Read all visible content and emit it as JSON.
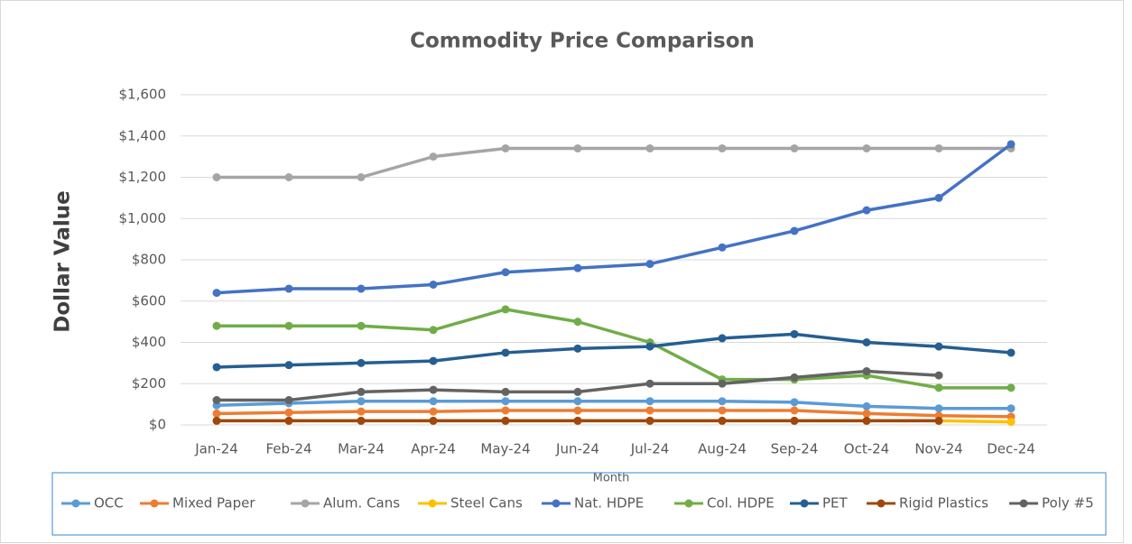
{
  "chart_data": {
    "type": "line",
    "title": "Commodity Price Comparison",
    "y_label": "Dollar Value",
    "x_label": "Month",
    "categories": [
      "Jan-24",
      "Feb-24",
      "Mar-24",
      "Apr-24",
      "May-24",
      "Jun-24",
      "Jul-24",
      "Aug-24",
      "Sep-24",
      "Oct-24",
      "Nov-24",
      "Dec-24"
    ],
    "ylim": [
      0,
      1600
    ],
    "yticks": [
      {
        "value": 0,
        "label": "$0"
      },
      {
        "value": 200,
        "label": "$200"
      },
      {
        "value": 400,
        "label": "$400"
      },
      {
        "value": 600,
        "label": "$600"
      },
      {
        "value": 800,
        "label": "$800"
      },
      {
        "value": 1000,
        "label": "$1,000"
      },
      {
        "value": 1200,
        "label": "$1,200"
      },
      {
        "value": 1400,
        "label": "$1,400"
      },
      {
        "value": 1600,
        "label": "$1,600"
      }
    ],
    "grid": true,
    "legend": "bottom",
    "series": [
      {
        "name": "OCC",
        "color": "#5b9bd5",
        "values": [
          95,
          105,
          115,
          115,
          115,
          115,
          115,
          115,
          110,
          90,
          80,
          80
        ]
      },
      {
        "name": "Mixed Paper",
        "color": "#ed7d31",
        "values": [
          55,
          60,
          65,
          65,
          70,
          70,
          70,
          70,
          70,
          55,
          45,
          40
        ]
      },
      {
        "name": "Alum. Cans",
        "color": "#a5a5a5",
        "values": [
          1200,
          1200,
          1200,
          1300,
          1340,
          1340,
          1340,
          1340,
          1340,
          1340,
          1340,
          1340
        ]
      },
      {
        "name": "Steel Cans",
        "color": "#ffc000",
        "values": [
          20,
          20,
          20,
          20,
          20,
          20,
          20,
          20,
          20,
          20,
          20,
          15
        ]
      },
      {
        "name": "Nat. HDPE",
        "color": "#4472c4",
        "values": [
          640,
          660,
          660,
          680,
          740,
          760,
          780,
          860,
          940,
          1040,
          1100,
          1360
        ]
      },
      {
        "name": "Col. HDPE",
        "color": "#70ad47",
        "values": [
          480,
          480,
          480,
          460,
          560,
          500,
          400,
          220,
          220,
          240,
          180,
          180
        ]
      },
      {
        "name": "PET",
        "color": "#255e91",
        "values": [
          280,
          290,
          300,
          310,
          350,
          370,
          380,
          420,
          440,
          400,
          380,
          350
        ]
      },
      {
        "name": "Rigid Plastics",
        "color": "#9e480e",
        "values": [
          20,
          20,
          20,
          20,
          20,
          20,
          20,
          20,
          20,
          20,
          20,
          null
        ]
      },
      {
        "name": "Poly #5",
        "color": "#636363",
        "values": [
          120,
          120,
          160,
          170,
          160,
          160,
          200,
          200,
          230,
          260,
          240,
          null
        ]
      }
    ]
  }
}
